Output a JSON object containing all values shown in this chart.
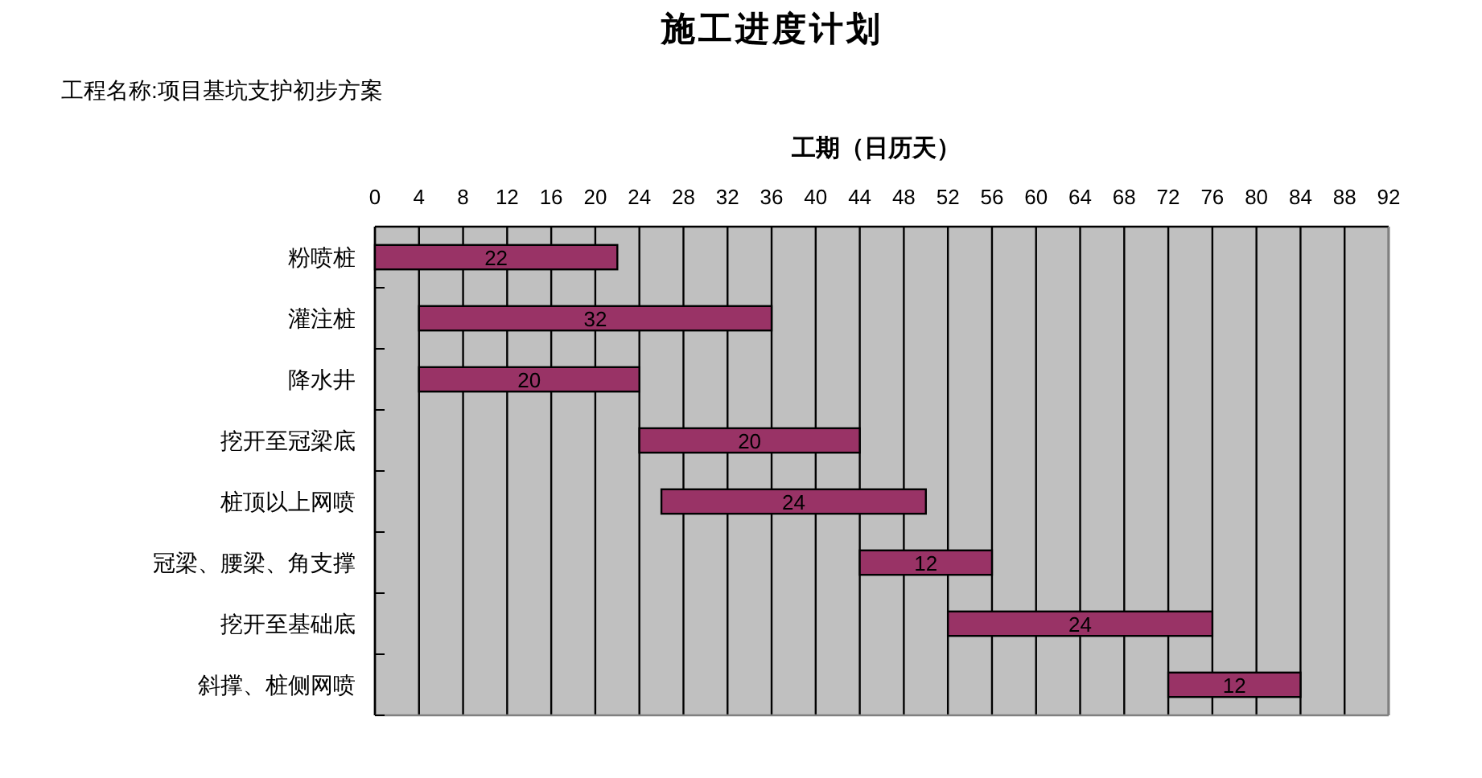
{
  "chart_data": {
    "type": "bar",
    "orientation": "horizontal",
    "title": "施工进度计划",
    "xlabel": "工期（日历天）",
    "annotations": [
      "工程名称:项目基坑支护初步方案"
    ],
    "categories": [
      "粉喷桩",
      "灌注桩",
      "降水井",
      "挖开至冠梁底",
      "桩顶以上网喷",
      "冠梁、腰梁、角支撑",
      "挖开至基础底",
      "斜撑、桩侧网喷"
    ],
    "base": [
      0,
      4,
      4,
      24,
      26,
      44,
      52,
      72
    ],
    "values": [
      22,
      32,
      20,
      20,
      24,
      12,
      24,
      12
    ],
    "color": "#993366",
    "xlim": [
      0,
      92
    ],
    "xticks": [
      0,
      4,
      8,
      12,
      16,
      20,
      24,
      28,
      32,
      36,
      40,
      44,
      48,
      52,
      56,
      60,
      64,
      68,
      72,
      76,
      80,
      84,
      88,
      92
    ],
    "grid": "x",
    "data_labels": true
  }
}
